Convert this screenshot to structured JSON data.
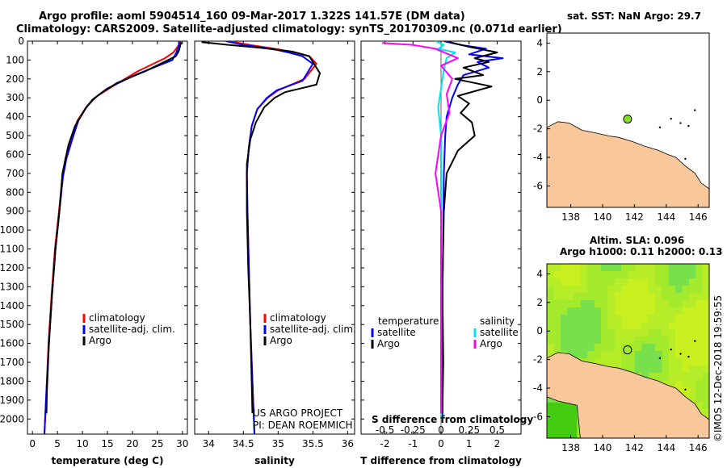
{
  "header": {
    "line1": "Argo profile: aoml 5904514_160 09-Mar-2017 1.322S 141.57E (DM data)",
    "line2": "Climatology: CARS2009. Satellite-adjusted climatology: synTS_20170309.nc (0.071d earlier)"
  },
  "chart_data": [
    {
      "type": "line",
      "name": "temperature-profile",
      "xlabel": "temperature (deg C)",
      "xticks": [
        0,
        5,
        10,
        15,
        20,
        25,
        30
      ],
      "xlim": [
        -1,
        31
      ],
      "ylim": [
        0,
        2080
      ],
      "yticks": [
        0,
        100,
        200,
        300,
        400,
        500,
        600,
        700,
        800,
        900,
        1000,
        1100,
        1200,
        1300,
        1400,
        1500,
        1600,
        1700,
        1800,
        1900,
        2000
      ],
      "legend": [
        {
          "label": "climatology",
          "color": "#ff0000"
        },
        {
          "label": "satellite-adj. clim.",
          "color": "#0000ff"
        },
        {
          "label": "Argo",
          "color": "#000000"
        }
      ],
      "series": [
        {
          "name": "climatology",
          "color": "#ff0000",
          "x": [
            29.6,
            29.3,
            28.2,
            26.5,
            21.0,
            16.0,
            13.0,
            11.0,
            9.0,
            8.0,
            6.6,
            6.0,
            5.3,
            4.5,
            3.8,
            3.2,
            2.8,
            2.4
          ],
          "y": [
            0,
            20,
            60,
            90,
            160,
            240,
            290,
            340,
            420,
            500,
            620,
            720,
            900,
            1100,
            1350,
            1600,
            1850,
            2080
          ]
        },
        {
          "name": "satellite-adj. clim.",
          "color": "#0000ff",
          "x": [
            29.3,
            29.3,
            28.8,
            28.0,
            20.5,
            15.0,
            12.5,
            10.8,
            9.2,
            8.2,
            6.8,
            6.1,
            5.4,
            4.6,
            3.9,
            3.3,
            2.8,
            2.4
          ],
          "y": [
            0,
            20,
            60,
            100,
            180,
            250,
            300,
            350,
            420,
            500,
            620,
            720,
            900,
            1100,
            1350,
            1600,
            1850,
            2080
          ]
        },
        {
          "name": "Argo",
          "color": "#000000",
          "x": [
            29.8,
            29.6,
            29.3,
            28.7,
            22.5,
            17.0,
            14.0,
            12.0,
            10.5,
            8.5,
            7.2,
            6.0,
            5.4,
            4.6,
            3.9,
            3.3,
            2.9,
            2.8
          ],
          "y": [
            5,
            20,
            50,
            80,
            160,
            220,
            270,
            310,
            360,
            450,
            550,
            700,
            900,
            1100,
            1350,
            1600,
            1850,
            1970
          ]
        }
      ]
    },
    {
      "type": "line",
      "name": "salinity-profile",
      "xlabel": "salinity",
      "xticks": [
        34,
        34.5,
        35,
        35.5,
        36
      ],
      "xlim": [
        33.8,
        36.1
      ],
      "ylim": [
        0,
        2080
      ],
      "legend": [
        {
          "label": "climatology",
          "color": "#ff0000"
        },
        {
          "label": "satellite-adj. clim.",
          "color": "#0000ff"
        },
        {
          "label": "Argo",
          "color": "#000000"
        }
      ],
      "series": [
        {
          "name": "climatology",
          "color": "#ff0000",
          "x": [
            34.3,
            34.6,
            34.95,
            35.25,
            35.45,
            35.55,
            35.38,
            35.0,
            34.85,
            34.7,
            34.62,
            34.58,
            34.55,
            34.56,
            34.58,
            34.6,
            34.63,
            34.66
          ],
          "y": [
            0,
            20,
            40,
            60,
            80,
            120,
            200,
            260,
            300,
            360,
            450,
            560,
            700,
            900,
            1200,
            1500,
            1800,
            2080
          ]
        },
        {
          "name": "satellite-adj. clim.",
          "color": "#0000ff",
          "x": [
            34.25,
            34.5,
            34.9,
            35.15,
            35.35,
            35.5,
            35.35,
            34.98,
            34.84,
            34.7,
            34.62,
            34.58,
            34.55,
            34.56,
            34.58,
            34.6,
            34.63,
            34.66
          ],
          "y": [
            0,
            20,
            40,
            60,
            80,
            120,
            210,
            260,
            300,
            360,
            450,
            560,
            700,
            900,
            1200,
            1500,
            1800,
            2080
          ]
        },
        {
          "name": "Argo",
          "color": "#000000",
          "x": [
            33.9,
            34.3,
            34.75,
            35.2,
            35.45,
            35.6,
            35.55,
            35.1,
            34.95,
            34.8,
            34.68,
            34.6,
            34.55,
            34.55,
            34.57,
            34.6,
            34.62,
            34.63
          ],
          "y": [
            5,
            20,
            35,
            55,
            80,
            170,
            230,
            270,
            300,
            350,
            430,
            520,
            650,
            900,
            1200,
            1500,
            1800,
            1970
          ]
        }
      ],
      "annotation": [
        "US ARGO PROJECT",
        "PI: DEAN ROEMMICH"
      ]
    },
    {
      "type": "line",
      "name": "difference-profile",
      "xlabel": "T difference from climatology",
      "xlabel_top": "S difference from climatology",
      "xticks": [
        -2,
        -1,
        0,
        1,
        2
      ],
      "xticks_top": [
        -0.5,
        -0.25,
        0,
        0.25,
        0.5
      ],
      "xlim": [
        -2.85,
        2.85
      ],
      "ylim": [
        0,
        2080
      ],
      "legend_left_title": "temperature",
      "legend_right_title": "salinity",
      "legend": [
        {
          "label": "satellite",
          "color": "#0000ff",
          "side": "left"
        },
        {
          "label": "Argo",
          "color": "#000000",
          "side": "left"
        },
        {
          "label": "satellite",
          "color": "#00e5e5",
          "side": "right"
        },
        {
          "label": "Argo",
          "color": "#ff00ff",
          "side": "right"
        }
      ],
      "series": [
        {
          "name": "T satellite",
          "color": "#0000ff",
          "x": [
            0.1,
            0.7,
            1.6,
            1.0,
            2.2,
            1.3,
            1.7,
            0.8,
            0.6,
            0.4,
            0.2,
            0.15,
            0.1,
            0.08,
            0.05,
            0.05,
            0.05
          ],
          "y": [
            0,
            20,
            40,
            70,
            90,
            110,
            140,
            180,
            230,
            300,
            400,
            500,
            700,
            1000,
            1400,
            1800,
            2000
          ]
        },
        {
          "name": "T Argo",
          "color": "#000000",
          "x": [
            0.3,
            1.0,
            2.0,
            1.2,
            1.7,
            0.8,
            1.5,
            0.5,
            1.8,
            0.6,
            1.0,
            0.7,
            1.1,
            1.2,
            0.6,
            0.2,
            0.1,
            0.05,
            0.08,
            0.05
          ],
          "y": [
            5,
            30,
            60,
            90,
            110,
            140,
            180,
            200,
            240,
            290,
            330,
            380,
            430,
            500,
            580,
            700,
            900,
            1300,
            1700,
            1970
          ]
        },
        {
          "name": "S satellite",
          "color": "#00e5e5",
          "x": [
            -0.2,
            0.1,
            -0.1,
            0.5,
            0.2,
            0.1,
            0.0,
            -0.1,
            0.0,
            0.0,
            0.0,
            0.0
          ],
          "y": [
            0,
            20,
            40,
            60,
            90,
            150,
            250,
            350,
            500,
            800,
            1400,
            2000
          ]
        },
        {
          "name": "S Argo",
          "color": "#ff00ff",
          "x": [
            -2.1,
            -1.0,
            -0.2,
            0.6,
            0.0,
            0.4,
            0.2,
            0.3,
            0.0,
            -0.2,
            0.0,
            0.0,
            0.0
          ],
          "y": [
            10,
            20,
            40,
            90,
            130,
            200,
            280,
            380,
            500,
            700,
            900,
            1400,
            1970
          ]
        }
      ]
    },
    {
      "type": "map",
      "name": "sst-map",
      "title": "sat. SST: NaN Argo: 29.7",
      "xticks": [
        138,
        140,
        142,
        144,
        146
      ],
      "yticks": [
        4,
        2,
        0,
        -2,
        -4,
        -6
      ],
      "xlim": [
        136.5,
        146.7
      ],
      "ylim": [
        -7.5,
        4.7
      ],
      "marker": {
        "lon": 141.57,
        "lat": -1.32,
        "color": "#88dd22"
      },
      "land_color": "#f8c89b"
    },
    {
      "type": "map",
      "name": "sla-map",
      "title": "Altim. SLA: 0.096",
      "subtitle": "Argo h1000: 0.11 h2000: 0.13",
      "xticks": [
        138,
        140,
        142,
        144,
        146
      ],
      "yticks": [
        4,
        2,
        0,
        -2,
        -4,
        -6
      ],
      "xlim": [
        136.5,
        146.7
      ],
      "ylim": [
        -7.5,
        4.7
      ],
      "marker": {
        "lon": 141.57,
        "lat": -1.32,
        "color": "none"
      },
      "land_color": "#f8c89b",
      "field_colors": [
        "#77e04c",
        "#a3ea2c",
        "#c8f01e",
        "#b6ec28"
      ]
    }
  ],
  "credit": "©IMOS 12-Dec-2018 19:59:55",
  "icons": {
    "credit": "copyright-icon"
  }
}
